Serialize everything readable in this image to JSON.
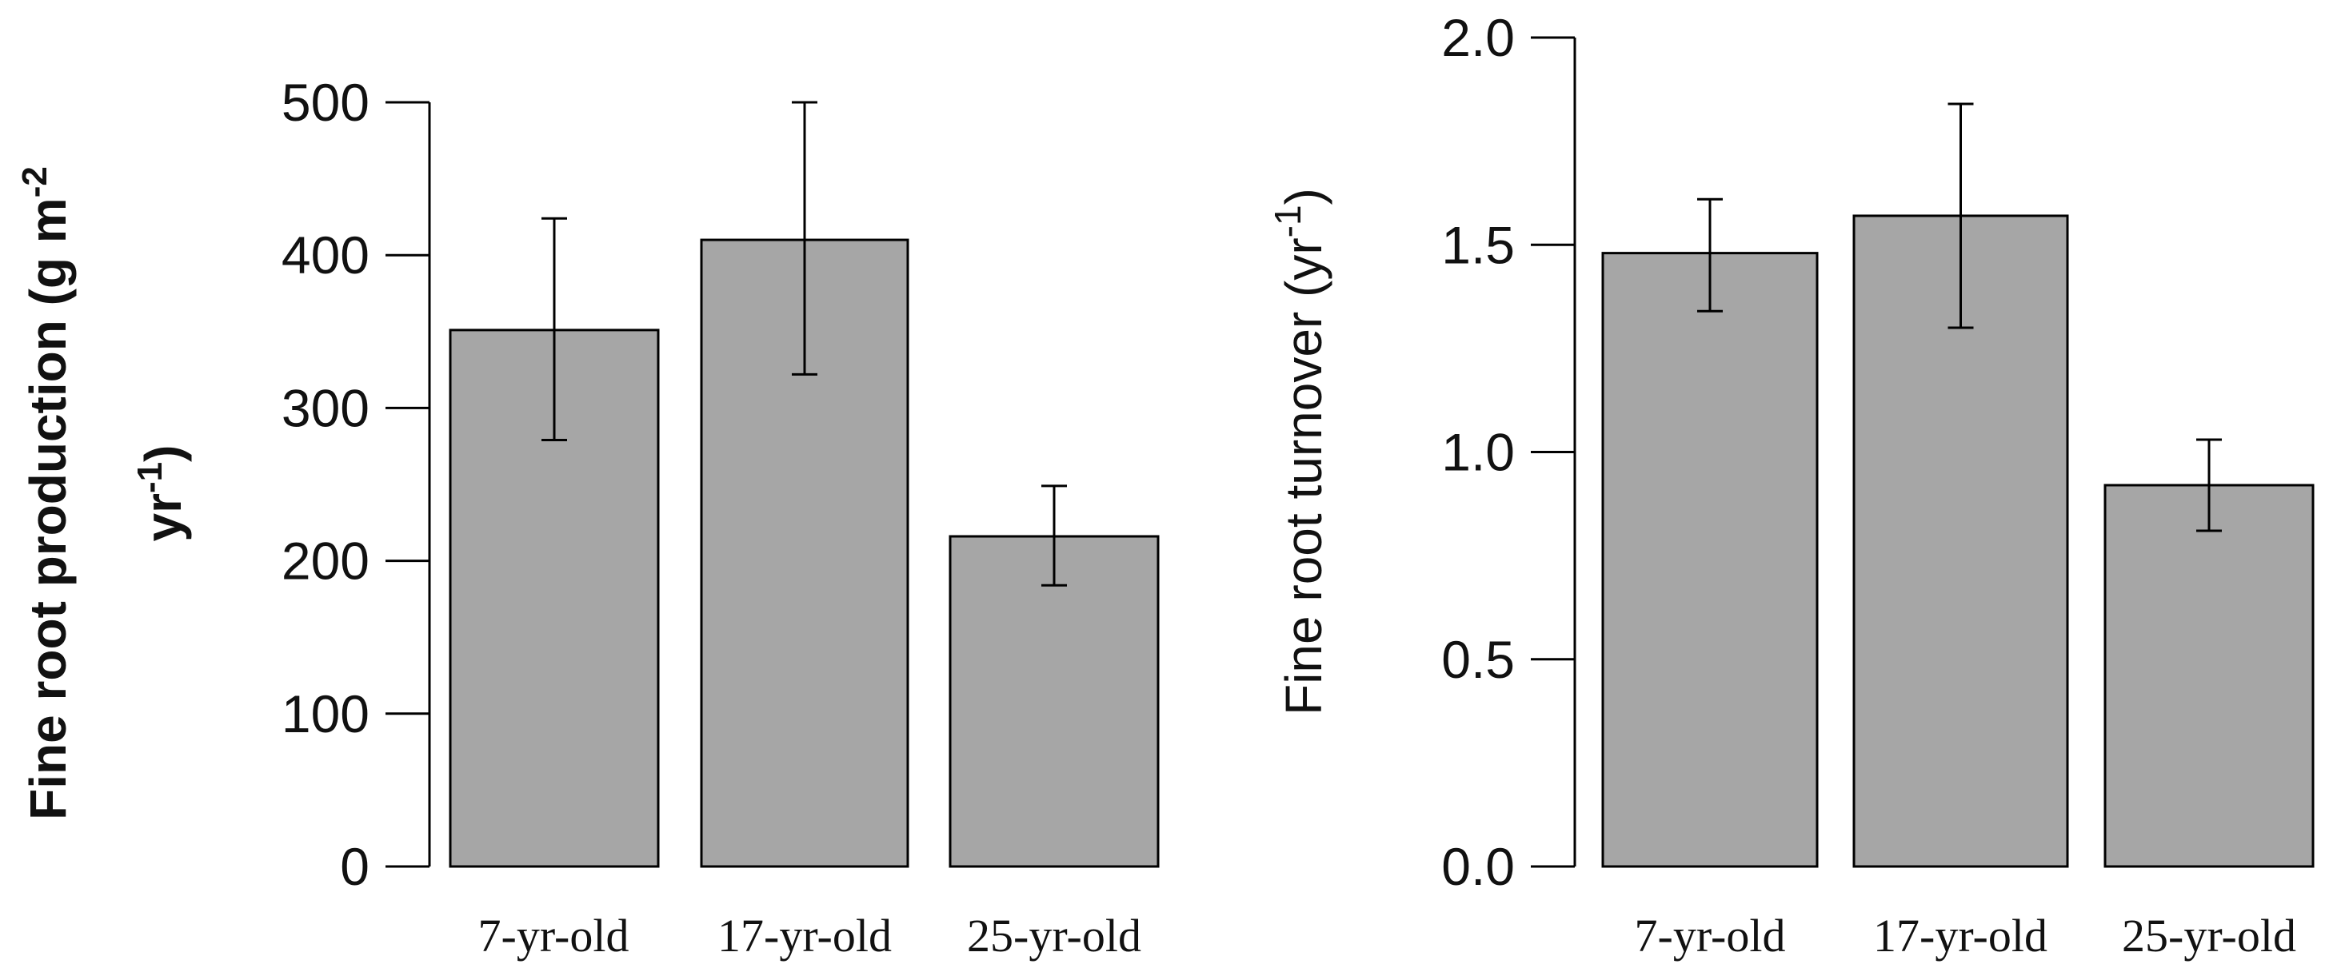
{
  "chart_data": [
    {
      "type": "bar",
      "title": "",
      "ylabel_line1": "Fine root production (g m",
      "ylabel_line1_sup": "-2",
      "ylabel_line2": "yr",
      "ylabel_line2_sup": "-1",
      "ylabel_line2_close": ")",
      "xlabel": "",
      "categories": [
        "7-yr-old",
        "17-yr-old",
        "25-yr-old"
      ],
      "values": [
        351,
        410,
        216
      ],
      "error_low": [
        279,
        322,
        184
      ],
      "error_high": [
        424,
        500,
        249
      ],
      "ylim": [
        0,
        500
      ],
      "yticks": [
        0,
        100,
        200,
        300,
        400,
        500
      ],
      "ytick_labels": [
        "0",
        "100",
        "200",
        "300",
        "400",
        "500"
      ],
      "bar_color": "#a6a6a6"
    },
    {
      "type": "bar",
      "title": "",
      "ylabel": "Fine root turnover (yr",
      "ylabel_sup": "-1",
      "ylabel_close": ")",
      "xlabel": "",
      "categories": [
        "7-yr-old",
        "17-yr-old",
        "25-yr-old"
      ],
      "values": [
        1.48,
        1.57,
        0.92
      ],
      "error_low": [
        1.34,
        1.3,
        0.81
      ],
      "error_high": [
        1.61,
        1.84,
        1.03
      ],
      "ylim": [
        0,
        2
      ],
      "yticks": [
        0,
        0.5,
        1,
        1.5,
        2
      ],
      "ytick_labels": [
        "0.0",
        "0.5",
        "1.0",
        "1.5",
        "2.0"
      ],
      "bar_color": "#a6a6a6"
    }
  ]
}
